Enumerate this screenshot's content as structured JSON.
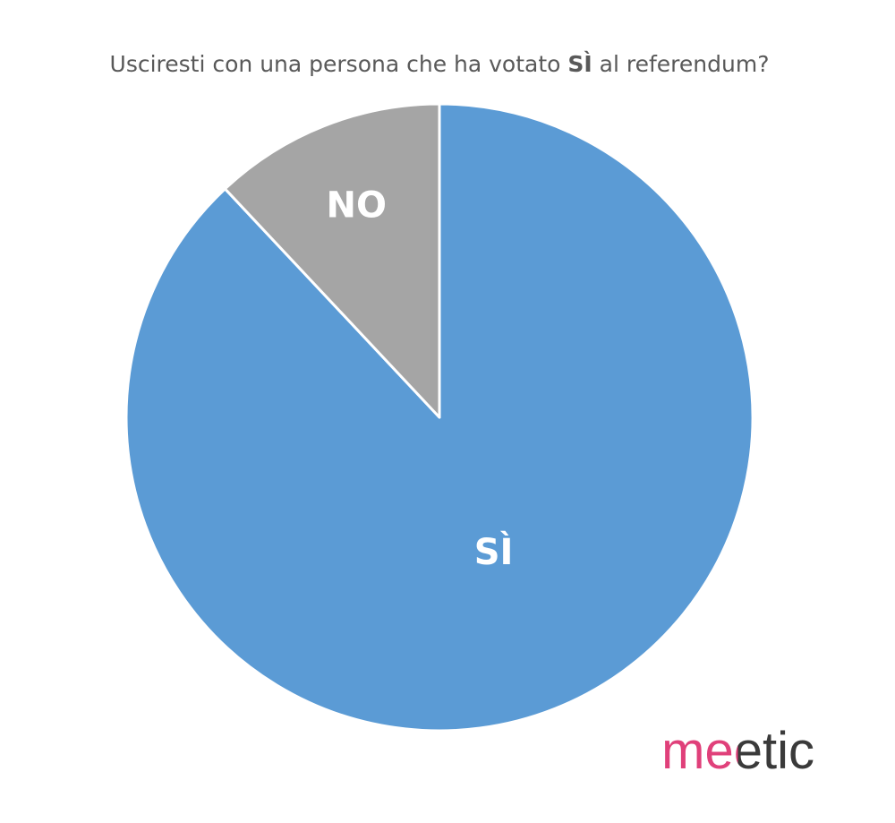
{
  "chart_data": {
    "type": "pie",
    "title_parts": [
      "Usciresti con una persona che ha votato ",
      "SÌ",
      " al referendum?"
    ],
    "categories": [
      "SÌ",
      "NO"
    ],
    "values": [
      88,
      12
    ],
    "colors": [
      "#5b9bd5",
      "#a5a5a5"
    ],
    "logo": "meetic"
  }
}
